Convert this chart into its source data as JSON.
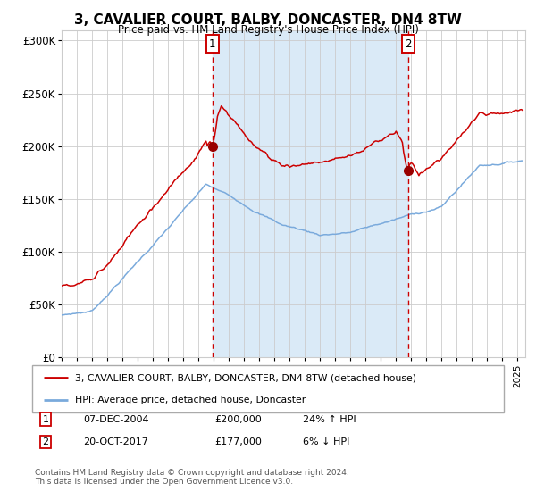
{
  "title": "3, CAVALIER COURT, BALBY, DONCASTER, DN4 8TW",
  "subtitle": "Price paid vs. HM Land Registry's House Price Index (HPI)",
  "legend_line1": "3, CAVALIER COURT, BALBY, DONCASTER, DN4 8TW (detached house)",
  "legend_line2": "HPI: Average price, detached house, Doncaster",
  "sale1_date": "07-DEC-2004",
  "sale1_price": 200000,
  "sale1_pct": "24% ↑ HPI",
  "sale1_year": 2004.92,
  "sale2_date": "20-OCT-2017",
  "sale2_price": 177000,
  "sale2_pct": "6% ↓ HPI",
  "sale2_year": 2017.79,
  "hpi_color": "#7aaadc",
  "price_color": "#cc0000",
  "point_color": "#990000",
  "vline_color": "#cc0000",
  "shade_color": "#daeaf7",
  "background_color": "#ffffff",
  "grid_color": "#cccccc",
  "footnote_line1": "Contains HM Land Registry data © Crown copyright and database right 2024.",
  "footnote_line2": "This data is licensed under the Open Government Licence v3.0.",
  "ylim": [
    0,
    310000
  ],
  "yticks": [
    0,
    50000,
    100000,
    150000,
    200000,
    250000,
    300000
  ],
  "ytick_labels": [
    "£0",
    "£50K",
    "£100K",
    "£150K",
    "£200K",
    "£250K",
    "£300K"
  ],
  "xmin": 1995.0,
  "xmax": 2025.5
}
